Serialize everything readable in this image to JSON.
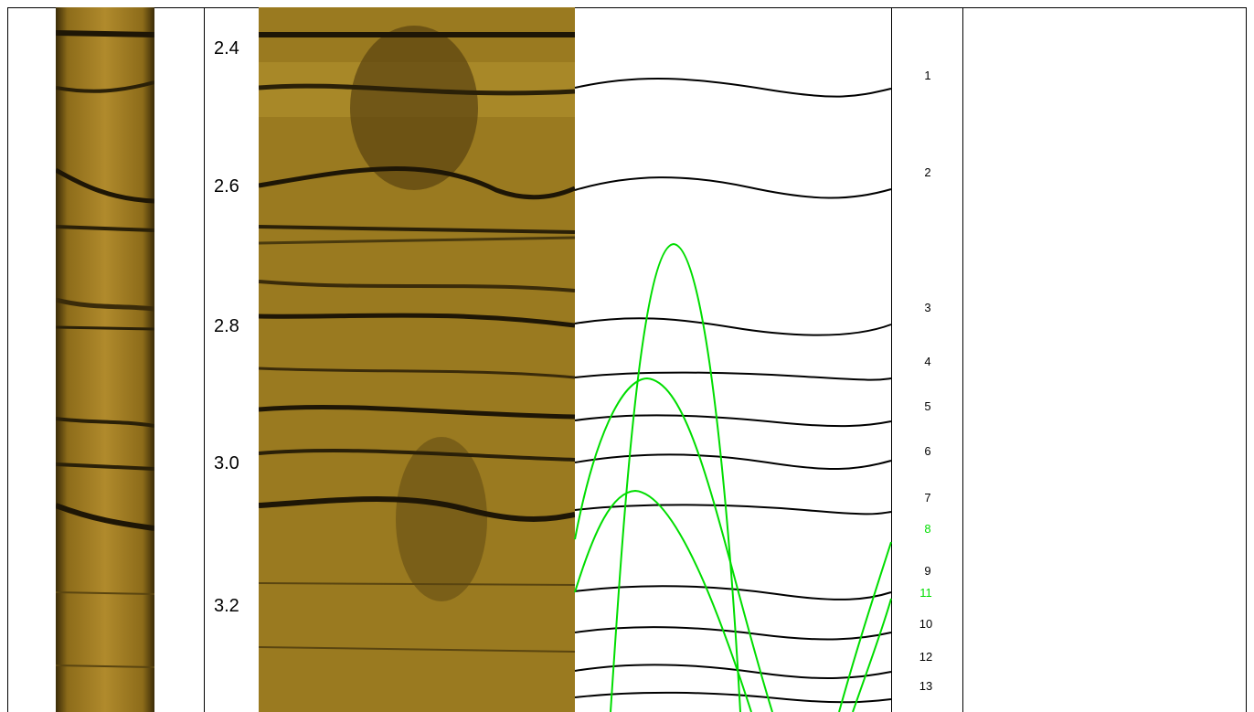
{
  "depth_axis": {
    "labels": [
      "2.4",
      "2.6",
      "2.8",
      "3.0",
      "3.2"
    ]
  },
  "traces": [
    {
      "label": "1",
      "color": "#000000"
    },
    {
      "label": "2",
      "color": "#000000"
    },
    {
      "label": "3",
      "color": "#000000"
    },
    {
      "label": "4",
      "color": "#000000"
    },
    {
      "label": "5",
      "color": "#000000"
    },
    {
      "label": "6",
      "color": "#000000"
    },
    {
      "label": "7",
      "color": "#000000"
    },
    {
      "label": "8",
      "color": "#00dd00"
    },
    {
      "label": "9",
      "color": "#000000"
    },
    {
      "label": "11",
      "color": "#00dd00"
    },
    {
      "label": "10",
      "color": "#000000"
    },
    {
      "label": "12",
      "color": "#000000"
    },
    {
      "label": "13",
      "color": "#000000"
    }
  ],
  "colors": {
    "sediment": "#9a7a20",
    "dark_band": "#2a2008",
    "planar_trace": "#000000",
    "steep_trace": "#00dd00"
  }
}
